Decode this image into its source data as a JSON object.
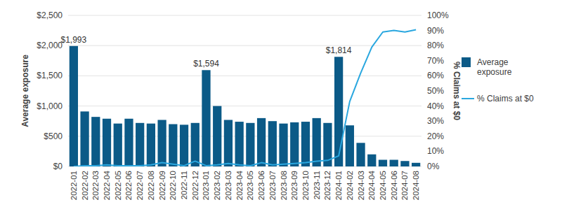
{
  "chart_data": {
    "type": "bar",
    "categories": [
      "2022-01",
      "2022-02",
      "2022-03",
      "2022-04",
      "2022-05",
      "2022-06",
      "2022-07",
      "2022-08",
      "2022-09",
      "2022-10",
      "2022-11",
      "2022-12",
      "2023-01",
      "2023-02",
      "2023-03",
      "2023-04",
      "2023-05",
      "2023-06",
      "2023-07",
      "2023-08",
      "2023-09",
      "2023-10",
      "2023-11",
      "2023-12",
      "2024-01",
      "2024-02",
      "2024-03",
      "2024-04",
      "2024-05",
      "2024-06",
      "2024-07",
      "2024-08"
    ],
    "series": [
      {
        "name": "Average exposure",
        "type": "bar",
        "color": "#0b5a87",
        "values": [
          1993,
          910,
          820,
          790,
          710,
          790,
          720,
          710,
          770,
          700,
          690,
          720,
          1594,
          1000,
          770,
          740,
          720,
          800,
          750,
          710,
          730,
          740,
          800,
          720,
          1814,
          680,
          390,
          200,
          110,
          110,
          90,
          60
        ],
        "value_labels": [
          "$1,993",
          null,
          null,
          null,
          null,
          null,
          null,
          null,
          null,
          null,
          null,
          null,
          "$1,594",
          null,
          null,
          null,
          null,
          null,
          null,
          null,
          null,
          null,
          null,
          null,
          "$1,814",
          null,
          null,
          null,
          null,
          null,
          null,
          null
        ]
      },
      {
        "name": "% Claims at $0",
        "type": "line",
        "axis": "y2",
        "color": "#2aa7df",
        "values": [
          0,
          0.5,
          0.5,
          1,
          0.5,
          0.5,
          0.5,
          1,
          2.5,
          1.5,
          0.5,
          3.5,
          0.5,
          1,
          2,
          1,
          0.5,
          2.5,
          1,
          1.5,
          2,
          2.5,
          3.5,
          4,
          7,
          43,
          62,
          79,
          89,
          90,
          89,
          90.5
        ]
      }
    ],
    "y_label": "Average exposure",
    "y2_label": "% Claims at $0",
    "ylim": [
      0,
      2500
    ],
    "yticks": [
      {
        "value": 0,
        "label": "$0"
      },
      {
        "value": 500,
        "label": "$500"
      },
      {
        "value": 1000,
        "label": "$1,000"
      },
      {
        "value": 1500,
        "label": "$1,500"
      },
      {
        "value": 2000,
        "label": "$2,000"
      },
      {
        "value": 2500,
        "label": "$2,500"
      }
    ],
    "y2lim": [
      0,
      100
    ],
    "y2ticks": [
      {
        "value": 0,
        "label": "0%"
      },
      {
        "value": 10,
        "label": "10%"
      },
      {
        "value": 20,
        "label": "20%"
      },
      {
        "value": 30,
        "label": "30%"
      },
      {
        "value": 40,
        "label": "40%"
      },
      {
        "value": 50,
        "label": "50%"
      },
      {
        "value": 60,
        "label": "60%"
      },
      {
        "value": 70,
        "label": "70%"
      },
      {
        "value": 80,
        "label": "80%"
      },
      {
        "value": 90,
        "label": "90%"
      },
      {
        "value": 100,
        "label": "100%"
      }
    ],
    "grid": true,
    "legend": "right"
  }
}
